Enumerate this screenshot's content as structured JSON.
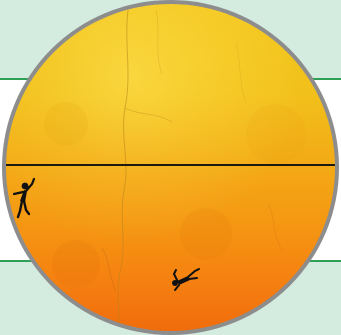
{
  "scene": {
    "background_color": "#d4ebe0",
    "band_color": "#ffffff",
    "band_line_color": "#2f9e57",
    "circle_border_color": "#8d8d8d",
    "horizon_color": "#1a1a12",
    "sky_colors": [
      "#f2c51d",
      "#f3ab16",
      "#f57f10",
      "#f06c0c"
    ],
    "figures": [
      {
        "icon": "hanging-figure-icon"
      },
      {
        "icon": "falling-figure-icon"
      }
    ]
  }
}
